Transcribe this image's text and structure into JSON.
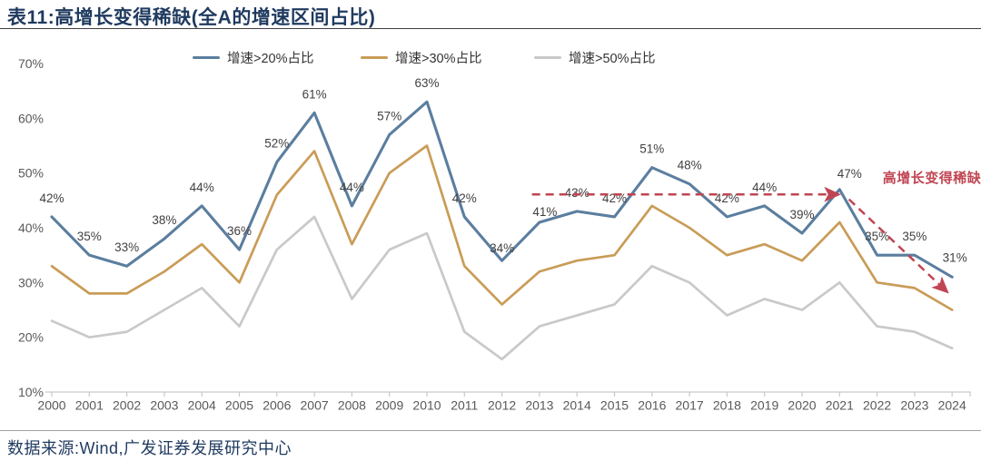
{
  "title": "表11:高增长变得稀缺(全A的增速区间占比)",
  "source": "数据来源:Wind,广发证券发展研究中心",
  "colors": {
    "blue": "#5B7E9F",
    "orange": "#C99C57",
    "gray": "#C9C9C9",
    "red": "#C04552",
    "navy": "#1F3A5F",
    "axis_text": "#595959",
    "label_text": "#404040",
    "axis_line": "#C9C9C9"
  },
  "chart_data": {
    "type": "line",
    "x": [
      2000,
      2001,
      2002,
      2003,
      2004,
      2005,
      2006,
      2007,
      2008,
      2009,
      2010,
      2011,
      2012,
      2013,
      2014,
      2015,
      2016,
      2017,
      2018,
      2019,
      2020,
      2021,
      2022,
      2023,
      2024
    ],
    "series": [
      {
        "name": "增速>20%占比",
        "color_key": "blue",
        "show_labels": true,
        "values": [
          42,
          35,
          33,
          38,
          44,
          36,
          52,
          61,
          44,
          57,
          63,
          42,
          34,
          41,
          43,
          42,
          51,
          48,
          42,
          44,
          39,
          47,
          35,
          35,
          31
        ]
      },
      {
        "name": "增速>30%占比",
        "color_key": "orange",
        "show_labels": false,
        "values": [
          33,
          28,
          28,
          32,
          37,
          30,
          46,
          54,
          37,
          50,
          55,
          33,
          26,
          32,
          34,
          35,
          44,
          40,
          35,
          37,
          34,
          41,
          30,
          29,
          25
        ]
      },
      {
        "name": "增速>50%占比",
        "color_key": "gray",
        "show_labels": false,
        "values": [
          23,
          20,
          21,
          25,
          29,
          22,
          36,
          42,
          27,
          36,
          39,
          21,
          16,
          22,
          24,
          26,
          33,
          30,
          24,
          27,
          25,
          30,
          22,
          21,
          18
        ]
      }
    ],
    "y_ticks": [
      70,
      60,
      50,
      40,
      30,
      20,
      10
    ],
    "y_tick_suffix": "%",
    "ylim": [
      10,
      70
    ],
    "grid": false,
    "legend_position": "top",
    "annotation": {
      "label": "高增长变得稀缺",
      "ref_line": {
        "from_x": 2012.8,
        "to_x": 2020.95,
        "value": 46.1
      },
      "trend_arrow": {
        "from": [
          2021.25,
          45.2
        ],
        "to": [
          2023.85,
          28.4
        ]
      },
      "label_at": [
        2022.15,
        48.3
      ]
    }
  }
}
